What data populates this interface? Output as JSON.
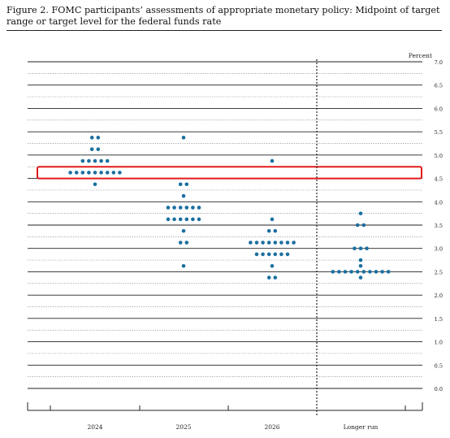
{
  "figure": {
    "title": "Figure 2.  FOMC participants’ assessments of appropriate monetary policy: Midpoint of target range or target level for the federal funds rate"
  },
  "chart_data": {
    "type": "scatter",
    "title": "Figure 2.  FOMC participants’ assessments of appropriate monetary policy: Midpoint of target range or target level for the federal funds rate",
    "ylabel": "Percent",
    "xlabel": "",
    "categories": [
      "2024",
      "2025",
      "2026",
      "Longer run"
    ],
    "ylim": [
      0,
      7
    ],
    "yticks": [
      "7.0",
      "6.5",
      "6.0",
      "5.5",
      "5.0",
      "4.5",
      "4.0",
      "3.5",
      "3.0",
      "2.5",
      "2.0",
      "1.5",
      "1.0",
      "0.5",
      "0.0"
    ],
    "dots": {
      "2024": [
        {
          "y": 5.375,
          "n": 2
        },
        {
          "y": 5.125,
          "n": 2
        },
        {
          "y": 4.875,
          "n": 5
        },
        {
          "y": 4.625,
          "n": 9
        },
        {
          "y": 4.375,
          "n": 1
        }
      ],
      "2025": [
        {
          "y": 5.375,
          "n": 1
        },
        {
          "y": 4.375,
          "n": 2
        },
        {
          "y": 4.125,
          "n": 1
        },
        {
          "y": 3.875,
          "n": 6
        },
        {
          "y": 3.625,
          "n": 6
        },
        {
          "y": 3.375,
          "n": 1
        },
        {
          "y": 3.125,
          "n": 2
        },
        {
          "y": 2.625,
          "n": 1
        }
      ],
      "2026": [
        {
          "y": 4.875,
          "n": 1
        },
        {
          "y": 3.625,
          "n": 1
        },
        {
          "y": 3.375,
          "n": 2
        },
        {
          "y": 3.125,
          "n": 8
        },
        {
          "y": 2.875,
          "n": 6
        },
        {
          "y": 2.625,
          "n": 1
        },
        {
          "y": 2.375,
          "n": 2
        }
      ],
      "Longer run": [
        {
          "y": 3.75,
          "n": 1
        },
        {
          "y": 3.5,
          "n": 2
        },
        {
          "y": 3.0,
          "n": 3
        },
        {
          "y": 2.75,
          "n": 1
        },
        {
          "y": 2.625,
          "n": 1
        },
        {
          "y": 2.5,
          "n": 10
        },
        {
          "y": 2.375,
          "n": 1
        }
      ]
    },
    "highlight": {
      "ymin": 4.5,
      "ymax": 4.75
    },
    "grid": true,
    "colors": {
      "dot": "#1a6fa0",
      "highlight": "#e31b1b",
      "axis": "#222222",
      "grid": "#999999"
    }
  }
}
